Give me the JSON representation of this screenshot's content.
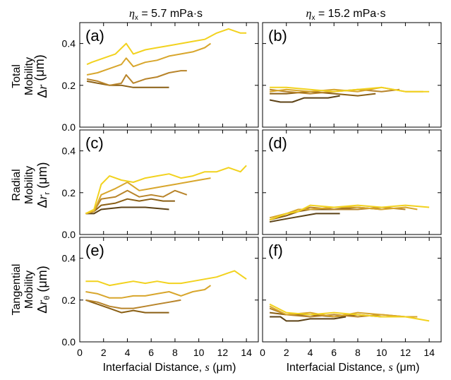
{
  "figure": {
    "column_headers": [
      {
        "sym": "η",
        "sub": "x",
        "text": " = 5.7 mPa·s"
      },
      {
        "sym": "η",
        "sub": "x",
        "text": " = 15.2 mPa·s"
      }
    ],
    "row_labels": [
      {
        "line1": "Total",
        "line2": "Mobility",
        "delta": "Δ",
        "sym": "r",
        "sub": "",
        "unit": " (μm)"
      },
      {
        "line1": "Radial",
        "line2": "Mobility",
        "delta": "Δ",
        "sym": "r",
        "sub": "r",
        "unit": " (μm)"
      },
      {
        "line1": "Tangential",
        "line2": "Mobility",
        "delta": "Δ",
        "sym": "r",
        "sub": "θ",
        "unit": " (μm)"
      }
    ],
    "x_axis_labels": [
      {
        "text": "Interfacial Distance, ",
        "sym": "s",
        "unit": " (μm)"
      },
      {
        "text": "Interfacial Distance, ",
        "sym": "s",
        "unit": " (μm)"
      }
    ],
    "x_tick_labels": [
      "0",
      "2",
      "4",
      "6",
      "8",
      "10",
      "12",
      "14"
    ],
    "y_tick_labels": [
      "0.0",
      "0.2",
      "0.4"
    ],
    "colors": [
      "#1a1208",
      "#5c4216",
      "#8a5f14",
      "#b8842a",
      "#d8a62c",
      "#f2d21e"
    ]
  },
  "chart_data": [
    {
      "type": "line",
      "panel_label": "(a)",
      "xlim": [
        0,
        15
      ],
      "ylim": [
        0,
        0.5
      ],
      "series": [
        {
          "x": [
            0.6,
            1.5,
            2.5,
            3.5,
            4.5,
            5.5,
            6.5,
            7.5
          ],
          "y": [
            0.22,
            0.21,
            0.2,
            0.2,
            0.19,
            0.19,
            0.19,
            0.19
          ]
        },
        {
          "x": [
            0.6,
            1.5,
            2.5,
            3.5,
            3.9,
            4.5,
            5.5,
            6.5,
            7.5,
            8.5,
            9.0
          ],
          "y": [
            0.23,
            0.22,
            0.2,
            0.21,
            0.25,
            0.21,
            0.23,
            0.24,
            0.26,
            0.27,
            0.27
          ]
        },
        {
          "x": [
            0.6,
            1.5,
            2.5,
            3.5,
            3.9,
            4.5,
            5.5,
            6.5,
            7.5,
            8.5,
            9.5,
            10.5,
            11.0
          ],
          "y": [
            0.25,
            0.26,
            0.28,
            0.3,
            0.33,
            0.29,
            0.31,
            0.32,
            0.34,
            0.35,
            0.36,
            0.38,
            0.4
          ]
        },
        {
          "x": [
            0.6,
            1.0,
            2.0,
            3.0,
            3.9,
            4.5,
            5.5,
            6.5,
            7.5,
            8.5,
            9.5,
            10.5,
            11.5,
            12.5,
            13.5,
            14.0
          ],
          "y": [
            0.3,
            0.31,
            0.33,
            0.35,
            0.4,
            0.35,
            0.37,
            0.38,
            0.39,
            0.4,
            0.41,
            0.42,
            0.45,
            0.47,
            0.45,
            0.45
          ]
        }
      ]
    },
    {
      "type": "line",
      "panel_label": "(b)",
      "xlim": [
        0,
        15
      ],
      "ylim": [
        0,
        0.5
      ],
      "series": [
        {
          "x": [
            0.6,
            1.5,
            2.5,
            3.5,
            4.5,
            5.5,
            6.5
          ],
          "y": [
            0.13,
            0.12,
            0.12,
            0.14,
            0.14,
            0.14,
            0.15
          ]
        },
        {
          "x": [
            0.6,
            2.0,
            4.0,
            6.0,
            8.0,
            9.5
          ],
          "y": [
            0.16,
            0.16,
            0.17,
            0.16,
            0.15,
            0.16
          ]
        },
        {
          "x": [
            0.6,
            2.0,
            4.0,
            6.0,
            8.0,
            10.0,
            11.5
          ],
          "y": [
            0.18,
            0.17,
            0.16,
            0.17,
            0.18,
            0.17,
            0.18
          ]
        },
        {
          "x": [
            0.6,
            2.0,
            4.0,
            6.0,
            8.0,
            10.0,
            12.0,
            13.5
          ],
          "y": [
            0.17,
            0.18,
            0.17,
            0.18,
            0.17,
            0.19,
            0.17,
            0.17
          ]
        },
        {
          "x": [
            0.6,
            2.0,
            4.0,
            6.0,
            8.0,
            10.0,
            12.0,
            14.0
          ],
          "y": [
            0.19,
            0.19,
            0.18,
            0.17,
            0.18,
            0.19,
            0.17,
            0.17
          ]
        }
      ]
    },
    {
      "type": "line",
      "panel_label": "(c)",
      "xlim": [
        0,
        15
      ],
      "ylim": [
        0,
        0.5
      ],
      "series": [
        {
          "x": [
            0.5,
            1.2,
            1.8,
            3.5,
            5.5,
            7.5
          ],
          "y": [
            0.1,
            0.1,
            0.12,
            0.13,
            0.13,
            0.12
          ]
        },
        {
          "x": [
            0.5,
            1.2,
            1.8,
            3.0,
            4.0,
            5.0,
            6.0,
            7.0,
            8.0
          ],
          "y": [
            0.1,
            0.11,
            0.14,
            0.15,
            0.17,
            0.16,
            0.17,
            0.16,
            0.16
          ]
        },
        {
          "x": [
            0.5,
            1.2,
            1.8,
            3.0,
            4.0,
            5.0,
            6.0,
            7.0,
            8.0,
            9.0
          ],
          "y": [
            0.1,
            0.11,
            0.17,
            0.18,
            0.21,
            0.18,
            0.19,
            0.18,
            0.21,
            0.19
          ]
        },
        {
          "x": [
            0.5,
            1.2,
            1.8,
            3.0,
            4.0,
            5.0,
            6.0,
            7.0,
            8.0,
            9.0,
            10.0,
            11.0
          ],
          "y": [
            0.1,
            0.11,
            0.19,
            0.22,
            0.25,
            0.21,
            0.22,
            0.23,
            0.24,
            0.25,
            0.26,
            0.27
          ]
        },
        {
          "x": [
            0.5,
            1.2,
            1.8,
            2.5,
            3.5,
            4.5,
            5.5,
            6.5,
            7.5,
            8.5,
            9.5,
            10.5,
            11.5,
            12.5,
            13.5,
            14.0
          ],
          "y": [
            0.1,
            0.12,
            0.24,
            0.28,
            0.26,
            0.25,
            0.27,
            0.28,
            0.29,
            0.27,
            0.28,
            0.3,
            0.3,
            0.32,
            0.3,
            0.33
          ]
        }
      ]
    },
    {
      "type": "line",
      "panel_label": "(d)",
      "xlim": [
        0,
        15
      ],
      "ylim": [
        0,
        0.5
      ],
      "series": [
        {
          "x": [
            0.6,
            1.5,
            2.5,
            3.5,
            4.5,
            5.5,
            6.5
          ],
          "y": [
            0.06,
            0.07,
            0.08,
            0.09,
            0.1,
            0.1,
            0.1
          ]
        },
        {
          "x": [
            0.6,
            2.0,
            3.0,
            4.0,
            6.0,
            8.0,
            10.0
          ],
          "y": [
            0.07,
            0.09,
            0.11,
            0.12,
            0.12,
            0.13,
            0.12
          ]
        },
        {
          "x": [
            0.6,
            2.0,
            3.0,
            4.0,
            6.0,
            8.0,
            10.0,
            12.0
          ],
          "y": [
            0.07,
            0.1,
            0.11,
            0.13,
            0.12,
            0.12,
            0.13,
            0.12
          ]
        },
        {
          "x": [
            0.6,
            2.0,
            3.0,
            4.0,
            6.0,
            8.0,
            10.0,
            12.0,
            13.0
          ],
          "y": [
            0.08,
            0.1,
            0.12,
            0.12,
            0.13,
            0.13,
            0.12,
            0.13,
            0.12
          ]
        },
        {
          "x": [
            0.6,
            2.0,
            3.0,
            4.0,
            6.0,
            8.0,
            10.0,
            12.0,
            14.0
          ],
          "y": [
            0.07,
            0.1,
            0.11,
            0.14,
            0.13,
            0.14,
            0.13,
            0.14,
            0.13
          ]
        }
      ]
    },
    {
      "type": "line",
      "panel_label": "(e)",
      "xlim": [
        0,
        15
      ],
      "ylim": [
        0,
        0.5
      ],
      "series": [
        {
          "x": [
            0.5,
            1.5,
            2.5,
            3.5,
            4.5,
            5.5,
            6.5,
            7.5
          ],
          "y": [
            0.2,
            0.18,
            0.16,
            0.14,
            0.15,
            0.14,
            0.14,
            0.14
          ]
        },
        {
          "x": [
            0.5,
            1.5,
            2.5,
            3.5,
            4.5,
            5.5,
            6.5,
            7.5,
            8.5
          ],
          "y": [
            0.2,
            0.19,
            0.17,
            0.16,
            0.16,
            0.17,
            0.18,
            0.19,
            0.2
          ]
        },
        {
          "x": [
            0.5,
            1.5,
            2.5,
            3.5,
            4.5,
            5.5,
            6.5,
            7.5,
            8.5,
            9.5,
            10.5,
            11.0
          ],
          "y": [
            0.24,
            0.23,
            0.21,
            0.21,
            0.22,
            0.22,
            0.23,
            0.24,
            0.22,
            0.24,
            0.25,
            0.27
          ]
        },
        {
          "x": [
            0.5,
            1.5,
            2.5,
            3.5,
            4.5,
            5.5,
            6.5,
            7.5,
            8.5,
            9.5,
            10.5,
            11.5,
            12.5,
            13.0,
            14.0
          ],
          "y": [
            0.29,
            0.29,
            0.27,
            0.28,
            0.29,
            0.28,
            0.29,
            0.28,
            0.28,
            0.29,
            0.3,
            0.31,
            0.33,
            0.34,
            0.3
          ]
        }
      ]
    },
    {
      "type": "line",
      "panel_label": "(f)",
      "xlim": [
        0,
        15
      ],
      "ylim": [
        0,
        0.5
      ],
      "series": [
        {
          "x": [
            0.6,
            1.5,
            2.0,
            3.0,
            4.0,
            5.0,
            6.0,
            7.0
          ],
          "y": [
            0.12,
            0.12,
            0.1,
            0.1,
            0.11,
            0.11,
            0.11,
            0.12
          ]
        },
        {
          "x": [
            0.6,
            2.0,
            4.0,
            6.0,
            8.0,
            10.0
          ],
          "y": [
            0.14,
            0.13,
            0.13,
            0.12,
            0.13,
            0.12
          ]
        },
        {
          "x": [
            0.6,
            2.0,
            4.0,
            6.0,
            8.0,
            10.0,
            12.0
          ],
          "y": [
            0.16,
            0.13,
            0.12,
            0.13,
            0.12,
            0.13,
            0.12
          ]
        },
        {
          "x": [
            0.6,
            2.0,
            4.0,
            6.0,
            8.0,
            10.0,
            12.0,
            13.0
          ],
          "y": [
            0.17,
            0.13,
            0.14,
            0.12,
            0.14,
            0.13,
            0.12,
            0.12
          ]
        },
        {
          "x": [
            0.6,
            2.0,
            4.0,
            6.0,
            8.0,
            10.0,
            12.0,
            14.0
          ],
          "y": [
            0.18,
            0.14,
            0.13,
            0.14,
            0.13,
            0.12,
            0.12,
            0.1
          ]
        }
      ]
    }
  ]
}
